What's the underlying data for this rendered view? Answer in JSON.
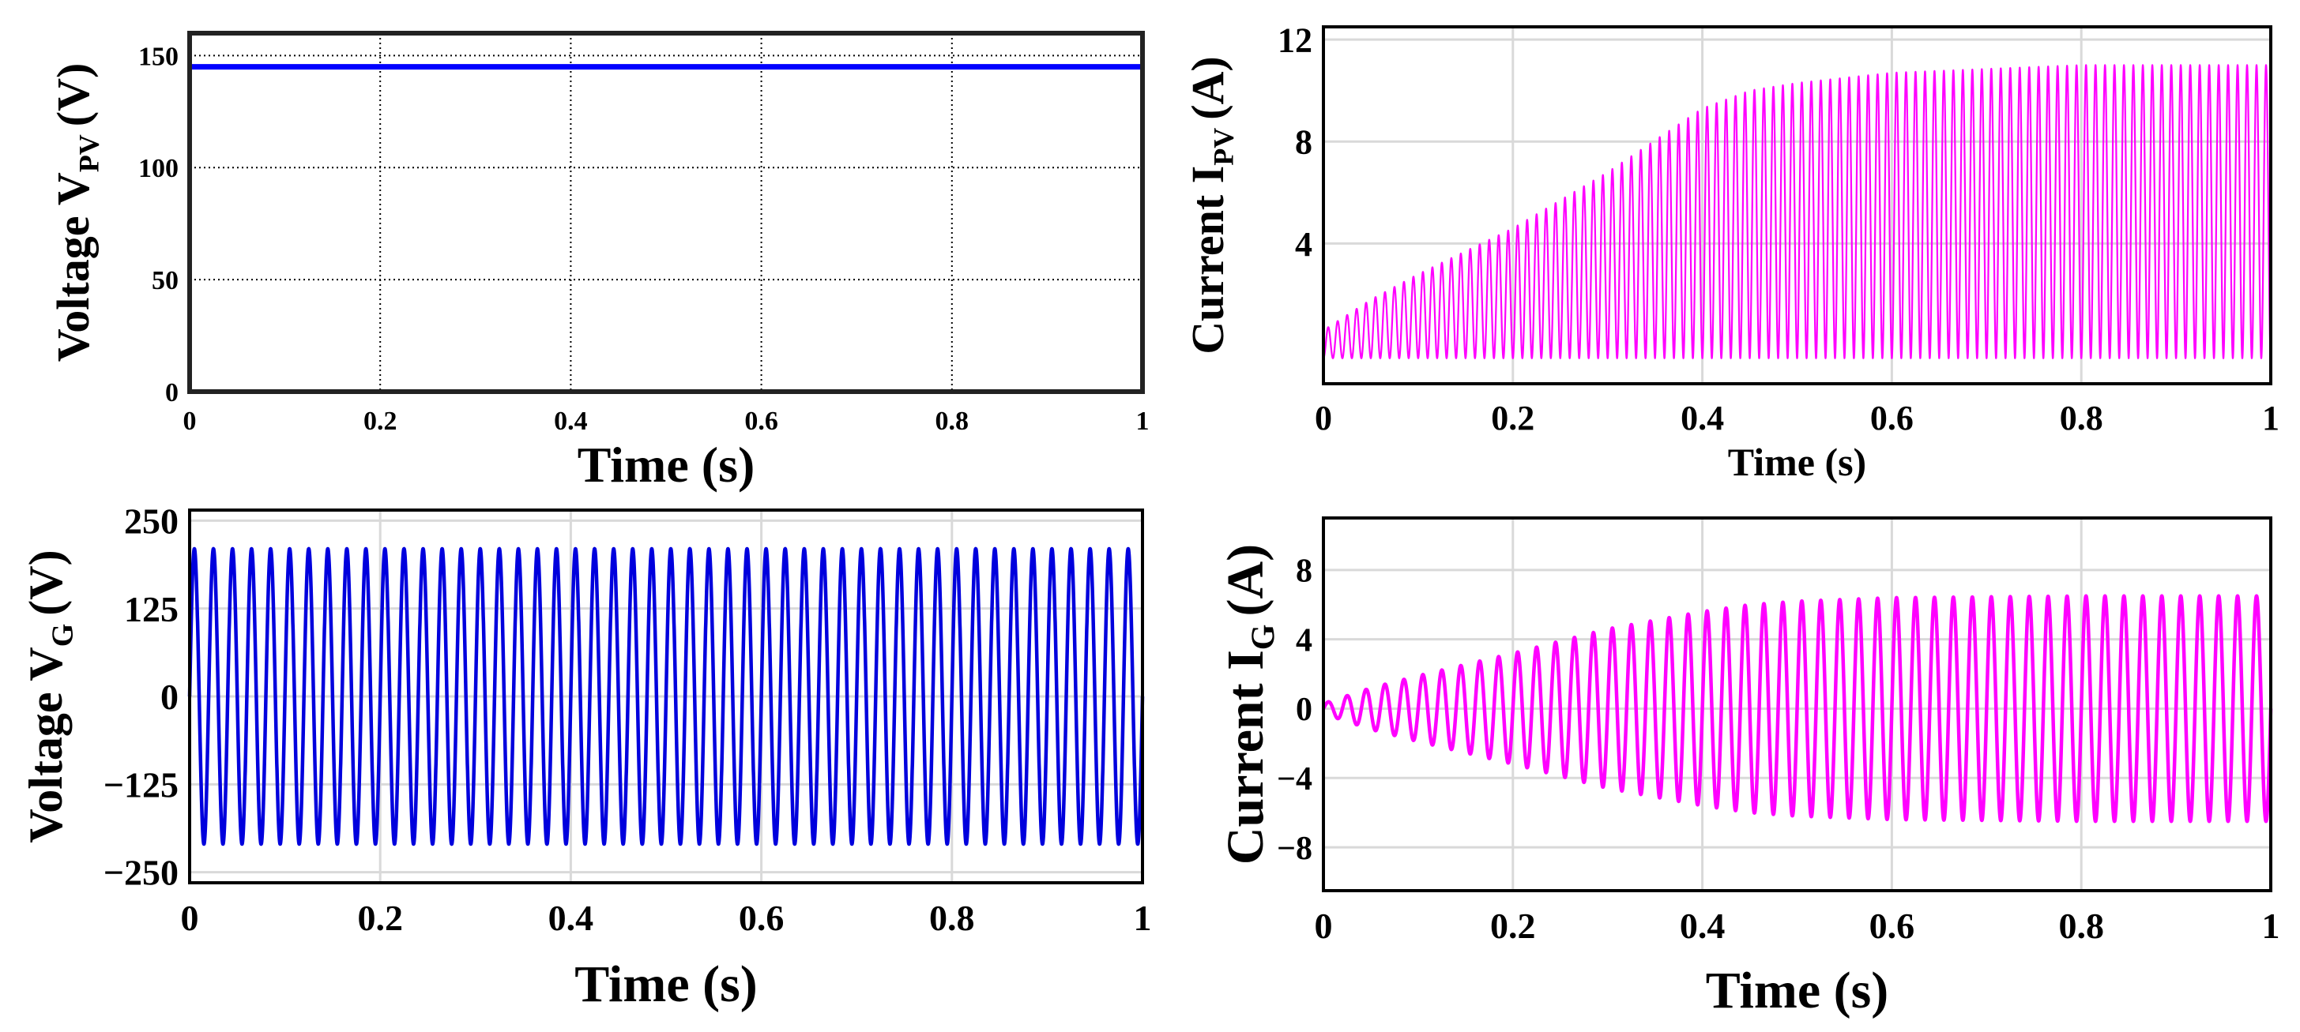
{
  "chart_data": [
    {
      "type": "line",
      "title": "",
      "xlabel": "Time (s)",
      "ylabel": "Voltage V",
      "ylabel_sub": "PV",
      "ylabel_unit": "(V)",
      "xlim": [
        0,
        1
      ],
      "ylim": [
        0,
        160
      ],
      "xticks": [
        0,
        0.2,
        0.4,
        0.6,
        0.8,
        1
      ],
      "xtick_labels": [
        "0",
        "0.2",
        "0.4",
        "0.6",
        "0.8",
        "1"
      ],
      "yticks": [
        0,
        50,
        100,
        150
      ],
      "ytick_labels": [
        "0",
        "50",
        "100",
        "150"
      ],
      "grid": "dotted",
      "series": [
        {
          "name": "V_PV",
          "color": "#0000ff",
          "kind": "constant",
          "value": 145
        }
      ]
    },
    {
      "type": "line",
      "title": "",
      "xlabel": "Time (s)",
      "ylabel": "Current I",
      "ylabel_sub": "PV",
      "ylabel_unit": "(A)",
      "xlim": [
        0,
        1
      ],
      "ylim": [
        -1.5,
        12.5
      ],
      "xticks": [
        0,
        0.2,
        0.4,
        0.6,
        0.8,
        1
      ],
      "xtick_labels": [
        "0",
        "0.2",
        "0.4",
        "0.6",
        "0.8",
        "1"
      ],
      "yticks": [
        4,
        8,
        12
      ],
      "ytick_labels": [
        "4",
        "8",
        "12"
      ],
      "grid": "solid",
      "series": [
        {
          "name": "I_PV",
          "color": "#ff00ff",
          "kind": "pulses",
          "cycles": 100,
          "base": -0.5,
          "envelope_t": [
            0,
            0.05,
            0.1,
            0.2,
            0.3,
            0.4,
            0.45,
            0.5,
            0.6,
            0.8,
            1.0
          ],
          "envelope_peak": [
            0.6,
            1.8,
            2.8,
            4.6,
            6.8,
            9.3,
            10.0,
            10.3,
            10.7,
            11.0,
            11.0
          ]
        }
      ]
    },
    {
      "type": "line",
      "title": "",
      "xlabel": "Time (s)",
      "ylabel": "Voltage V",
      "ylabel_sub": "G",
      "ylabel_unit": "(V)",
      "xlim": [
        0,
        1
      ],
      "ylim": [
        -265,
        265
      ],
      "xticks": [
        0,
        0.2,
        0.4,
        0.6,
        0.8,
        1
      ],
      "xtick_labels": [
        "0",
        "0.2",
        "0.4",
        "0.6",
        "0.8",
        "1"
      ],
      "yticks": [
        -250,
        -125,
        0,
        125,
        250
      ],
      "ytick_labels": [
        "−250",
        "−125",
        "0",
        "125",
        "250"
      ],
      "grid": "solid",
      "series": [
        {
          "name": "V_G",
          "color": "#0000dd",
          "kind": "sine",
          "frequency_hz": 50,
          "amplitude": 210
        }
      ]
    },
    {
      "type": "line",
      "title": "",
      "xlabel": "Time (s)",
      "ylabel": "Current I",
      "ylabel_sub": "G",
      "ylabel_unit": "(A)",
      "xlim": [
        0,
        1
      ],
      "ylim": [
        -10.5,
        11
      ],
      "xticks": [
        0,
        0.2,
        0.4,
        0.6,
        0.8,
        1
      ],
      "xtick_labels": [
        "0",
        "0.2",
        "0.4",
        "0.6",
        "0.8",
        "1"
      ],
      "yticks": [
        -8,
        -4,
        0,
        4,
        8
      ],
      "ytick_labels": [
        "−8",
        "−4",
        "0",
        "4",
        "8"
      ],
      "grid": "solid",
      "series": [
        {
          "name": "I_G",
          "color": "#ff00ff",
          "kind": "sine_envelope",
          "frequency_hz": 50,
          "envelope_t": [
            0,
            0.05,
            0.1,
            0.2,
            0.3,
            0.4,
            0.45,
            0.5,
            0.6,
            0.8,
            1.0
          ],
          "envelope_amp": [
            0.3,
            1.2,
            1.9,
            3.2,
            4.6,
            5.6,
            6.0,
            6.2,
            6.4,
            6.5,
            6.5
          ]
        }
      ]
    }
  ]
}
